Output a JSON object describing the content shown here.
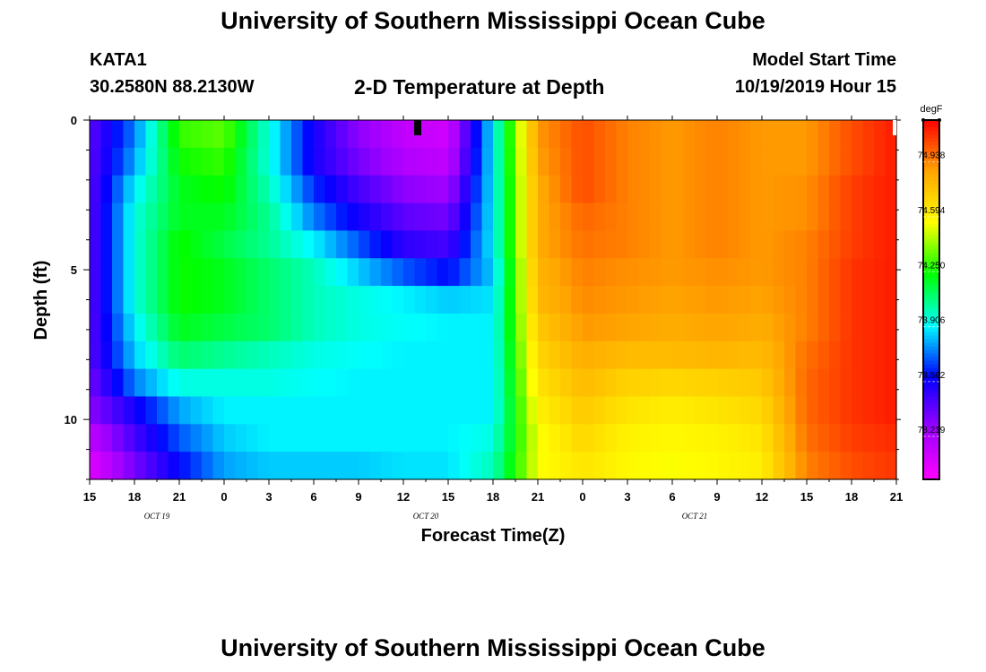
{
  "header": {
    "title": "University of Southern Mississippi Ocean Cube",
    "station": "KATA1",
    "coordinates": "30.2580N 88.2130W",
    "subtitle": "2-D Temperature at Depth",
    "model_label": "Model Start Time",
    "model_time": "10/19/2019 Hour 15"
  },
  "footer": {
    "title": "University of Southern Mississippi Ocean Cube"
  },
  "chart_data": {
    "type": "heatmap",
    "title": "2-D Temperature at Depth",
    "xlabel": "Forecast Time(Z)",
    "ylabel": "Depth (ft)",
    "x_tick_labels": [
      "15",
      "18",
      "21",
      "0",
      "3",
      "6",
      "9",
      "12",
      "15",
      "18",
      "21",
      "0",
      "3",
      "6",
      "9",
      "12",
      "15",
      "18",
      "21"
    ],
    "date_labels": [
      {
        "text": "OCT 19",
        "at_tick": 2
      },
      {
        "text": "OCT 20",
        "at_tick": 8
      },
      {
        "text": "OCT 21",
        "at_tick": 14
      }
    ],
    "y_tick_labels": [
      "0",
      "5",
      "10"
    ],
    "ylim": [
      12,
      0
    ],
    "colorbar": {
      "unit": "degF",
      "tick_labels": [
        "74.938",
        "74.594",
        "74.250",
        "73.906",
        "73.562",
        "73.219"
      ],
      "range": [
        72.95,
        75.2
      ],
      "colors": [
        "#ff00ff",
        "#9b00ff",
        "#0000ff",
        "#00ffff",
        "#00ff00",
        "#ffff00",
        "#ffa500",
        "#ff0000"
      ]
    },
    "hours": [
      0,
      3,
      6,
      9,
      12,
      15,
      18,
      21,
      24,
      27,
      30,
      33,
      36,
      39,
      42,
      45,
      48,
      51,
      54
    ],
    "depths": [
      0,
      1,
      2,
      3,
      4,
      5,
      6,
      7,
      8,
      9,
      10,
      11,
      12
    ],
    "temperature": [
      [
        73.4,
        73.75,
        74.3,
        74.35,
        73.95,
        73.55,
        73.3,
        73.15,
        73.1,
        73.9,
        74.9,
        75.05,
        74.95,
        74.9,
        74.95,
        74.9,
        74.9,
        75.05,
        75.15
      ],
      [
        73.4,
        73.8,
        74.25,
        74.3,
        73.95,
        73.55,
        73.35,
        73.2,
        73.15,
        73.9,
        74.88,
        75.05,
        74.95,
        74.9,
        74.95,
        74.9,
        74.9,
        75.05,
        75.15
      ],
      [
        73.4,
        73.9,
        74.2,
        74.25,
        74.0,
        73.65,
        73.45,
        73.3,
        73.25,
        73.9,
        74.85,
        75.05,
        74.95,
        74.9,
        74.95,
        74.9,
        74.92,
        75.08,
        75.15
      ],
      [
        73.4,
        73.95,
        74.2,
        74.2,
        74.05,
        73.75,
        73.55,
        73.4,
        73.35,
        73.9,
        74.85,
        75.0,
        74.95,
        74.9,
        74.95,
        74.9,
        74.92,
        75.08,
        75.15
      ],
      [
        73.4,
        73.95,
        74.25,
        74.15,
        74.05,
        73.9,
        73.7,
        73.5,
        73.45,
        73.9,
        74.85,
        74.98,
        74.95,
        74.9,
        74.95,
        74.9,
        74.95,
        75.08,
        75.15
      ],
      [
        73.4,
        73.95,
        74.25,
        74.2,
        74.1,
        74.0,
        73.85,
        73.7,
        73.6,
        73.85,
        74.82,
        74.95,
        74.92,
        74.9,
        74.92,
        74.9,
        74.95,
        75.1,
        75.15
      ],
      [
        73.4,
        73.95,
        74.25,
        74.2,
        74.1,
        74.0,
        73.95,
        73.9,
        73.85,
        73.88,
        74.8,
        74.93,
        74.9,
        74.88,
        74.9,
        74.88,
        74.95,
        75.1,
        75.15
      ],
      [
        73.4,
        73.9,
        74.2,
        74.15,
        74.1,
        74.0,
        73.95,
        73.92,
        73.9,
        73.9,
        74.75,
        74.9,
        74.88,
        74.85,
        74.88,
        74.85,
        74.95,
        75.1,
        75.15
      ],
      [
        73.4,
        73.85,
        74.1,
        74.05,
        74.0,
        73.95,
        73.92,
        73.9,
        73.9,
        73.9,
        74.7,
        74.85,
        74.8,
        74.8,
        74.82,
        74.8,
        74.98,
        75.1,
        75.15
      ],
      [
        73.35,
        73.75,
        73.95,
        73.95,
        73.95,
        73.92,
        73.9,
        73.9,
        73.9,
        73.9,
        74.65,
        74.8,
        74.72,
        74.7,
        74.72,
        74.75,
        75.0,
        75.1,
        75.15
      ],
      [
        73.3,
        73.55,
        73.8,
        73.9,
        73.9,
        73.9,
        73.9,
        73.9,
        73.9,
        73.9,
        74.6,
        74.75,
        74.65,
        74.62,
        74.65,
        74.7,
        75.0,
        75.1,
        75.15
      ],
      [
        73.15,
        73.45,
        73.7,
        73.85,
        73.9,
        73.9,
        73.9,
        73.9,
        73.9,
        73.95,
        74.55,
        74.7,
        74.6,
        74.58,
        74.6,
        74.65,
        74.98,
        75.08,
        75.12
      ],
      [
        73.05,
        73.35,
        73.6,
        73.8,
        73.85,
        73.85,
        73.85,
        73.88,
        73.88,
        74.0,
        74.55,
        74.65,
        74.58,
        74.55,
        74.58,
        74.62,
        74.95,
        75.05,
        75.1
      ]
    ]
  }
}
